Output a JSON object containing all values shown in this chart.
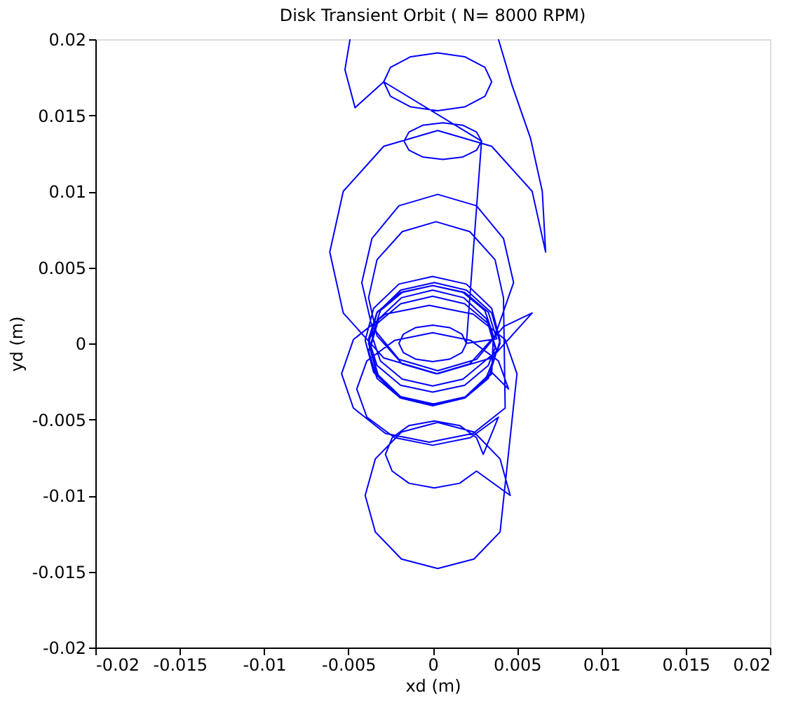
{
  "chart_data": {
    "type": "line",
    "title": "Disk Transient Orbit ( N= 8000 RPM)",
    "xlabel": "xd (m)",
    "ylabel": "yd (m)",
    "xlim": [
      -0.02,
      0.02
    ],
    "ylim": [
      -0.02,
      0.02
    ],
    "xticks": [
      -0.02,
      -0.015,
      -0.01,
      -0.005,
      0,
      0.005,
      0.01,
      0.015,
      0.02
    ],
    "yticks": [
      -0.02,
      -0.015,
      -0.01,
      -0.005,
      0,
      0.005,
      0.01,
      0.015,
      0.02
    ],
    "grid": false,
    "marker": "none",
    "line_style": "solid",
    "series": [
      {
        "color": "#0000ff",
        "x": [
          -0.0049,
          -0.0052,
          -0.0046,
          -0.0029,
          -0.0025,
          -0.0013,
          0.0003,
          0.0019,
          0.0031,
          0.0035,
          0.0031,
          0.0019,
          0.0003,
          -0.0013,
          -0.0025,
          -0.0029,
          0.0029,
          0.0026,
          0.0018,
          0.0006,
          -0.0006,
          -0.0014,
          -0.0017,
          -0.0014,
          -0.0006,
          0.0006,
          0.0018,
          0.0026,
          0.0029,
          0.002,
          0.00174,
          0.001,
          0,
          -0.001,
          -0.00174,
          -0.002,
          -0.00174,
          -0.001,
          0,
          0.001,
          0.00174,
          0.002,
          0.0038,
          0.0033,
          0.0019,
          0,
          -0.0019,
          -0.0033,
          -0.0038,
          -0.0033,
          -0.0019,
          0,
          0.0019,
          0.0033,
          0.0037,
          0.0032,
          0.00185,
          0,
          -0.00185,
          -0.0032,
          -0.0037,
          -0.0032,
          -0.00185,
          0,
          0.00185,
          0.0032,
          0.004,
          0.0035,
          0.002,
          0.0001,
          -0.0019,
          -0.0033,
          -0.0038,
          -0.0033,
          -0.0019,
          0.0001,
          0.002,
          0.0035,
          0.0036,
          0.0031,
          0.0018,
          0,
          -0.0018,
          -0.0031,
          -0.0036,
          -0.0031,
          -0.0018,
          0,
          0.0018,
          0.0031,
          0.0038,
          0.0033,
          0.0019,
          0,
          -0.0019,
          -0.0033,
          -0.0038,
          -0.0033,
          -0.0019,
          0,
          0.0019,
          0.0033,
          0.004,
          0.0035,
          0.002,
          0,
          -0.002,
          -0.0035,
          -0.004,
          -0.0035,
          -0.002,
          0,
          0.002,
          0.0035,
          0.0045,
          0.0039,
          0.00225,
          0,
          -0.00225,
          -0.0039,
          -0.0045,
          -0.0039,
          -0.00225,
          0,
          0.00225,
          0.0039,
          0.003,
          0.0026,
          0.0016,
          0.0001,
          -0.0014,
          -0.0024,
          -0.0028,
          -0.0024,
          -0.0014,
          0.0001,
          0.0016,
          0.0026,
          0.0046,
          0.004,
          0.00245,
          0.0003,
          -0.00185,
          -0.0034,
          -0.004,
          -0.0034,
          -0.00185,
          0.0003,
          0.00245,
          0.004,
          0.005,
          0.0043,
          0.0024,
          -0.0002,
          -0.0028,
          -0.0047,
          -0.0054,
          -0.0047,
          -0.0028,
          -0.0002,
          0.0024,
          0.0043,
          0.0042,
          0.0037,
          0.0022,
          0.0002,
          -0.0018,
          -0.0033,
          -0.0038,
          -0.0033,
          -0.0018,
          0.0002,
          0.0022,
          0.0037,
          0.0048,
          0.0042,
          0.0026,
          0.0003,
          -0.002,
          -0.0036,
          -0.0042,
          -0.0036,
          -0.002,
          0.0003,
          0.0026,
          0.0042,
          0.0059,
          0.0035,
          0.0003,
          -0.0029,
          -0.0053,
          -0.0061,
          -0.0053,
          -0.0029,
          0.0003,
          0.0035,
          0.0059,
          0.0067,
          0.0065,
          0.0058,
          0.0047,
          0.0039
        ],
        "values": [
          0.02,
          0.018,
          0.0155,
          0.0172,
          0.01815,
          0.01885,
          0.0191,
          0.01885,
          0.01815,
          0.0172,
          0.01625,
          0.01555,
          0.0153,
          0.01555,
          0.01625,
          0.0172,
          0.0133,
          0.0139,
          0.01434,
          0.0145,
          0.01434,
          0.0139,
          0.0133,
          0.0127,
          0.01226,
          0.0121,
          0.01226,
          0.0127,
          0.0133,
          0,
          0.0006,
          0.00104,
          0.0012,
          0.00104,
          0.0006,
          0,
          -0.0006,
          -0.00104,
          -0.0012,
          -0.00104,
          -0.0006,
          0,
          0.0003,
          0.00205,
          0.00335,
          0.0038,
          0.00335,
          0.00205,
          0.0003,
          -0.00145,
          -0.00275,
          -0.0032,
          -0.00275,
          -0.00145,
          -0.0003,
          0.0016,
          0.003,
          0.0035,
          0.003,
          0.0016,
          -0.0003,
          -0.0022,
          -0.0036,
          -0.0041,
          -0.0036,
          -0.0022,
          0,
          0.002,
          0.0035,
          0.004,
          0.0035,
          0.002,
          0,
          -0.002,
          -0.0035,
          -0.004,
          -0.0035,
          -0.002,
          0.0005,
          0.00215,
          0.00335,
          0.0038,
          0.00335,
          0.00215,
          0.0005,
          -0.00115,
          -0.00235,
          -0.0028,
          -0.00235,
          -0.00115,
          -0.0005,
          0.0013,
          0.0026,
          0.0031,
          0.0026,
          0.0013,
          -0.0005,
          -0.0023,
          -0.0036,
          -0.0041,
          -0.0036,
          -0.0023,
          0.0002,
          0.0023,
          0.0039,
          0.0044,
          0.0039,
          0.0023,
          0.0002,
          -0.0019,
          -0.0035,
          -0.004,
          -0.0035,
          -0.0019,
          -0.003,
          -0.00115,
          0.0002,
          0.0007,
          0.0002,
          -0.00115,
          -0.003,
          -0.00485,
          -0.0062,
          -0.0067,
          -0.0062,
          -0.00485,
          -0.0073,
          -0.0062,
          -0.0054,
          -0.0051,
          -0.0054,
          -0.0062,
          -0.0073,
          -0.0084,
          -0.0092,
          -0.0095,
          -0.0092,
          -0.0084,
          -0.01,
          -0.0076,
          -0.00583,
          -0.0052,
          -0.00583,
          -0.0076,
          -0.01,
          -0.0124,
          -0.01418,
          -0.0148,
          -0.01418,
          -0.0124,
          -0.002,
          0.00025,
          0.00192,
          0.0025,
          0.00192,
          0.00025,
          -0.002,
          -0.00425,
          -0.00592,
          -0.0065,
          -0.00592,
          -0.00425,
          0.003,
          0.0055,
          0.00735,
          0.008,
          0.00735,
          0.0055,
          0.003,
          0.0005,
          -0.00135,
          -0.002,
          -0.00135,
          0.0005,
          0.004,
          0.0069,
          0.00905,
          0.0098,
          0.00905,
          0.0069,
          0.004,
          0.0011,
          -0.00105,
          -0.0018,
          -0.00105,
          0.0011,
          0.002,
          -0.00096,
          -0.002,
          -0.00096,
          0.002,
          0.006,
          0.01,
          0.01296,
          0.014,
          0.01296,
          0.01,
          0.006,
          0.01,
          0.0135,
          0.017,
          0.02
        ]
      }
    ]
  }
}
